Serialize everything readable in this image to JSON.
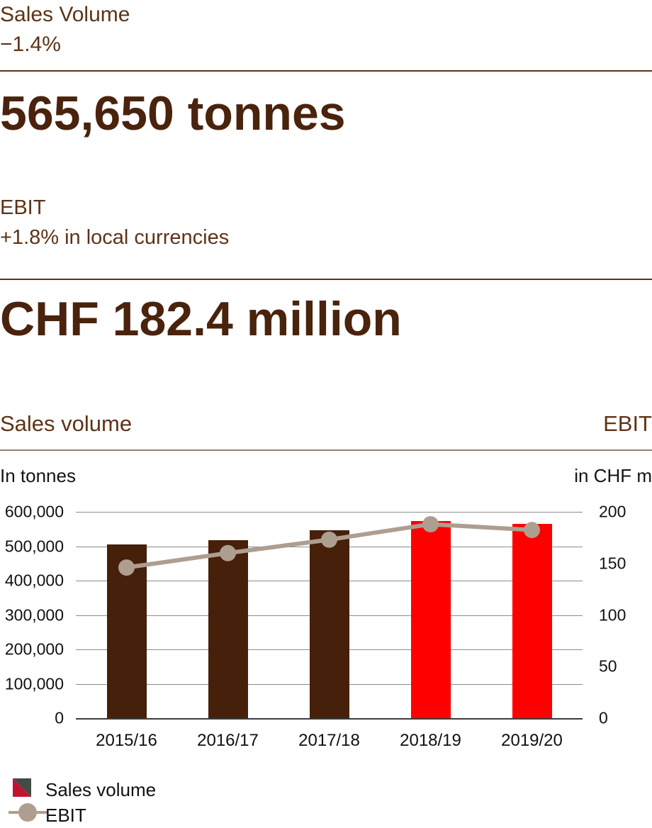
{
  "stats": {
    "volume_kicker": "Sales Volume",
    "volume_change": "−1.4%",
    "volume_value": "565,650 tonnes",
    "ebit_kicker": "EBIT",
    "ebit_change": "+1.8% in local currencies",
    "ebit_value": "CHF 182.4 million"
  },
  "chart_header": {
    "left_title": "Sales volume",
    "right_title": "EBIT"
  },
  "axis_units": {
    "left": "In tonnes",
    "right": "in CHF m"
  },
  "legend": {
    "items": [
      {
        "label": "Sales volume",
        "marker": "split-square",
        "colors": [
          "#c31230",
          "#424b45"
        ]
      },
      {
        "label": "EBIT",
        "marker": "line-dot",
        "color": "#ae9e90"
      }
    ]
  },
  "colors": {
    "heading_brown": "#5e3317",
    "big_number_brown": "#4a230d",
    "bar_brown": "#46200a",
    "bar_red": "#fe0000",
    "line_taupe": "#ae9e90",
    "gridline_grey": "#8c8c8c",
    "axis_dark": "#3c3c3c",
    "label_black": "#111111"
  },
  "chart_data": {
    "type": "bar",
    "categories": [
      "2015/16",
      "2016/17",
      "2017/18",
      "2018/19",
      "2019/20"
    ],
    "series": [
      {
        "name": "Sales volume",
        "type": "bar",
        "axis": "left",
        "values": [
          506000,
          518000,
          547000,
          573000,
          565650
        ],
        "bar_colors": [
          "#46200a",
          "#46200a",
          "#46200a",
          "#fe0000",
          "#fe0000"
        ]
      },
      {
        "name": "EBIT",
        "type": "line",
        "axis": "right",
        "values": [
          146,
          160,
          173,
          188,
          182.4
        ],
        "color": "#ae9e90"
      }
    ],
    "left_axis": {
      "label": "In tonnes",
      "min": 0,
      "max": 600000,
      "tick_values": [
        600000,
        500000,
        400000,
        300000,
        200000,
        100000,
        0
      ],
      "tick_labels": [
        "600,000",
        "500,000",
        "400,000",
        "300,000",
        "200,000",
        "100,000",
        "0"
      ]
    },
    "right_axis": {
      "label": "in CHF m",
      "min": 0,
      "max": 200,
      "tick_values": [
        200,
        150,
        100,
        50,
        0
      ],
      "tick_labels": [
        "200",
        "150",
        "100",
        "50",
        "0"
      ]
    },
    "grid": true,
    "legend_position": "bottom-left"
  }
}
